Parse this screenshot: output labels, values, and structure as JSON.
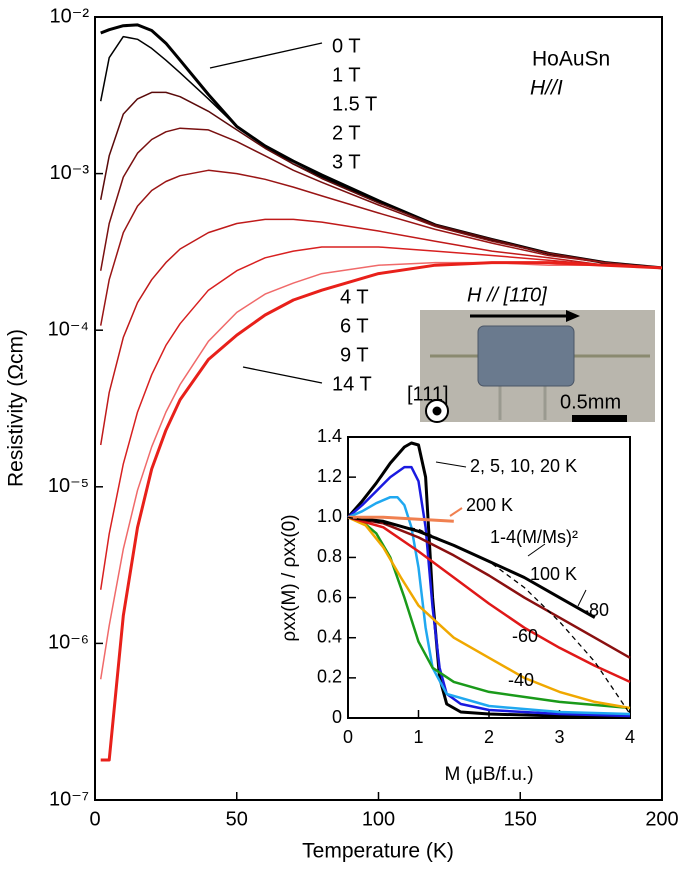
{
  "chart_data": [
    {
      "type": "line",
      "x_label": "Temperature (K)",
      "y_label": "Resistivity (Ωcm)",
      "x": [
        2,
        5,
        10,
        15,
        20,
        25,
        30,
        40,
        50,
        60,
        70,
        80,
        100,
        120,
        140,
        160,
        180,
        200
      ],
      "xlim": [
        0,
        200
      ],
      "xticks": [
        0,
        50,
        100,
        150,
        200
      ],
      "ylim": [
        1e-07,
        0.01
      ],
      "log_y": true,
      "yticks": [
        {
          "value": 1e-07,
          "label": "10⁻⁷"
        },
        {
          "value": 1e-06,
          "label": "10⁻⁶"
        },
        {
          "value": 1e-05,
          "label": "10⁻⁵"
        },
        {
          "value": 0.0001,
          "label": "10⁻⁴"
        },
        {
          "value": 0.001,
          "label": "10⁻³"
        },
        {
          "value": 0.01,
          "label": "10⁻²"
        }
      ],
      "series": [
        {
          "name": "0 T",
          "color": "#000000",
          "linewidth": 3,
          "values": [
            0.0079,
            0.0083,
            0.0088,
            0.0089,
            0.0082,
            0.0068,
            0.0053,
            0.0032,
            0.002,
            0.0015,
            0.0012,
            0.00098,
            0.00067,
            0.00047,
            0.00038,
            0.00031,
            0.00027,
            0.00025
          ]
        },
        {
          "name": "1 T",
          "color": "#000000",
          "linewidth": 1.5,
          "values": [
            0.0029,
            0.0055,
            0.0075,
            0.0072,
            0.0063,
            0.0053,
            0.0044,
            0.003,
            0.002,
            0.0015,
            0.00115,
            0.00095,
            0.00066,
            0.00047,
            0.00038,
            0.00031,
            0.00027,
            0.00025
          ]
        },
        {
          "name": "1.5 T",
          "color": "#5a0a0a",
          "linewidth": 1.5,
          "values": [
            0.00068,
            0.0013,
            0.0024,
            0.003,
            0.0033,
            0.0033,
            0.0031,
            0.0025,
            0.0019,
            0.00145,
            0.00115,
            0.00093,
            0.00065,
            0.00047,
            0.00038,
            0.00031,
            0.00027,
            0.00025
          ]
        },
        {
          "name": "2 T",
          "color": "#7a1010",
          "linewidth": 1.5,
          "values": [
            0.00024,
            0.00048,
            0.00095,
            0.00135,
            0.00165,
            0.00185,
            0.00195,
            0.0019,
            0.0016,
            0.0013,
            0.00105,
            0.00088,
            0.00063,
            0.00046,
            0.00037,
            0.00031,
            0.00027,
            0.00025
          ]
        },
        {
          "name": "3 T",
          "color": "#9a1515",
          "linewidth": 1.5,
          "values": [
            0.000107,
            0.00021,
            0.00042,
            0.00062,
            0.00078,
            0.00089,
            0.00097,
            0.00105,
            0.001,
            0.00092,
            0.00082,
            0.00072,
            0.00056,
            0.00044,
            0.00036,
            0.0003,
            0.00027,
            0.00025
          ]
        },
        {
          "name": "4 T",
          "color": "#c01a1a",
          "linewidth": 1.5,
          "values": [
            1.85e-05,
            4e-05,
            9e-05,
            0.00015,
            0.00021,
            0.00027,
            0.00033,
            0.00042,
            0.00048,
            0.00051,
            0.00051,
            0.00049,
            0.00043,
            0.00037,
            0.00032,
            0.00029,
            0.00026,
            0.00025
          ]
        },
        {
          "name": "6 T",
          "color": "#d82020",
          "linewidth": 1.5,
          "values": [
            2.2e-06,
            5e-06,
            1.4e-05,
            3e-05,
            5.2e-05,
            8e-05,
            0.00011,
            0.00018,
            0.00024,
            0.00029,
            0.00032,
            0.00034,
            0.00034,
            0.00032,
            0.0003,
            0.00028,
            0.00026,
            0.00025
          ]
        },
        {
          "name": "9 T",
          "color": "#f06a6a",
          "linewidth": 1.5,
          "values": [
            5.9e-07,
            1.3e-06,
            4e-06,
            9.5e-06,
            1.8e-05,
            3e-05,
            4.5e-05,
            8.5e-05,
            0.00013,
            0.00017,
            0.0002,
            0.00023,
            0.00026,
            0.00027,
            0.00027,
            0.00026,
            0.00026,
            0.00025
          ]
        },
        {
          "name": "14 T",
          "color": "#e8201a",
          "linewidth": 3,
          "values": [
            1.8e-07,
            1.8e-07,
            1.5e-06,
            5.5e-06,
            1.3e-05,
            2.3e-05,
            3.6e-05,
            6.5e-05,
            9.3e-05,
            0.000125,
            0.000156,
            0.00018,
            0.00023,
            0.00026,
            0.00027,
            0.00027,
            0.00026,
            0.00025
          ]
        }
      ],
      "annotations": {
        "sample": "HoAuSn",
        "direction": "H//I",
        "field": "H // [11̄0]",
        "axis": "[111]",
        "scale": "0.5mm"
      }
    },
    {
      "type": "line",
      "x_label": "M (μB/f.u.)",
      "y_label": "ρxx(M) / ρxx(0)",
      "xlim": [
        0,
        4
      ],
      "xticks": [
        0,
        1,
        2,
        3,
        4
      ],
      "ylim": [
        0,
        1.4
      ],
      "yticks": [
        0,
        0.2,
        0.4,
        0.6,
        0.8,
        {
          "value": 1,
          "label": "1.0"
        },
        1.2,
        1.4
      ],
      "series": [
        {
          "name": "2, 5, 10, 20 K",
          "color": "#000000",
          "linewidth": 3,
          "x": [
            0,
            0.2,
            0.4,
            0.6,
            0.8,
            0.9,
            1.0,
            1.1,
            1.2,
            1.3,
            1.4,
            1.6,
            2,
            3,
            4
          ],
          "values": [
            1,
            1.08,
            1.17,
            1.27,
            1.35,
            1.37,
            1.36,
            1.2,
            0.6,
            0.2,
            0.07,
            0.03,
            0.02,
            0.01,
            0.01
          ]
        },
        {
          "color": "#1a1ae0",
          "linewidth": 2.5,
          "x": [
            0,
            0.2,
            0.4,
            0.6,
            0.8,
            0.9,
            1.0,
            1.1,
            1.2,
            1.3,
            1.4,
            1.6,
            2,
            3,
            4
          ],
          "values": [
            1,
            1.06,
            1.13,
            1.2,
            1.25,
            1.25,
            1.18,
            0.95,
            0.55,
            0.25,
            0.12,
            0.07,
            0.04,
            0.02,
            0.01
          ]
        },
        {
          "color": "#20a8f0",
          "linewidth": 2.5,
          "x": [
            0,
            0.2,
            0.4,
            0.6,
            0.7,
            0.8,
            0.9,
            1.0,
            1.1,
            1.2,
            1.4,
            2,
            3,
            4
          ],
          "values": [
            1,
            1.03,
            1.07,
            1.1,
            1.1,
            1.06,
            0.95,
            0.75,
            0.45,
            0.25,
            0.12,
            0.06,
            0.03,
            0.02
          ]
        },
        {
          "color": "#1a9a1a",
          "linewidth": 2.5,
          "x": [
            0,
            0.2,
            0.4,
            0.6,
            0.8,
            1.0,
            1.2,
            1.5,
            2,
            3,
            4
          ],
          "values": [
            1,
            0.98,
            0.92,
            0.8,
            0.6,
            0.38,
            0.25,
            0.18,
            0.13,
            0.08,
            0.05
          ]
        },
        {
          "name": "-40",
          "color": "#f0a800",
          "linewidth": 2.5,
          "x": [
            0,
            0.25,
            0.5,
            0.75,
            1.0,
            1.5,
            2,
            2.5,
            3,
            3.5,
            4
          ],
          "values": [
            1,
            0.96,
            0.85,
            0.7,
            0.56,
            0.4,
            0.3,
            0.2,
            0.13,
            0.08,
            0.05
          ]
        },
        {
          "name": "-60",
          "color": "#e01818",
          "linewidth": 2.5,
          "x": [
            0,
            0.5,
            1,
            1.5,
            2,
            2.5,
            3,
            3.5,
            4
          ],
          "values": [
            1,
            0.95,
            0.83,
            0.7,
            0.57,
            0.45,
            0.35,
            0.26,
            0.18
          ]
        },
        {
          "name": "-80",
          "color": "#8a1010",
          "linewidth": 2.5,
          "x": [
            0,
            0.5,
            1,
            1.5,
            2,
            2.5,
            3,
            3.5,
            4
          ],
          "values": [
            1,
            0.97,
            0.9,
            0.81,
            0.71,
            0.6,
            0.5,
            0.4,
            0.3
          ]
        },
        {
          "name": "100 K",
          "color": "#000000",
          "linewidth": 3,
          "x": [
            0,
            0.5,
            1,
            1.5,
            2,
            2.5,
            3,
            3.5
          ],
          "values": [
            1,
            0.98,
            0.93,
            0.86,
            0.78,
            0.7,
            0.6,
            0.5
          ]
        },
        {
          "name": "200 K",
          "color": "#f08050",
          "linewidth": 3,
          "x": [
            0,
            0.5,
            1,
            1.5
          ],
          "values": [
            1,
            1.0,
            0.99,
            0.98
          ]
        },
        {
          "name": "1-4(M/Ms)²",
          "color": "#000000",
          "linewidth": 1.3,
          "dash": true,
          "x": [
            0,
            1,
            2,
            2.5,
            3,
            3.5,
            4
          ],
          "values": [
            1,
            0.94,
            0.78,
            0.65,
            0.48,
            0.28,
            0.02
          ]
        }
      ]
    }
  ]
}
